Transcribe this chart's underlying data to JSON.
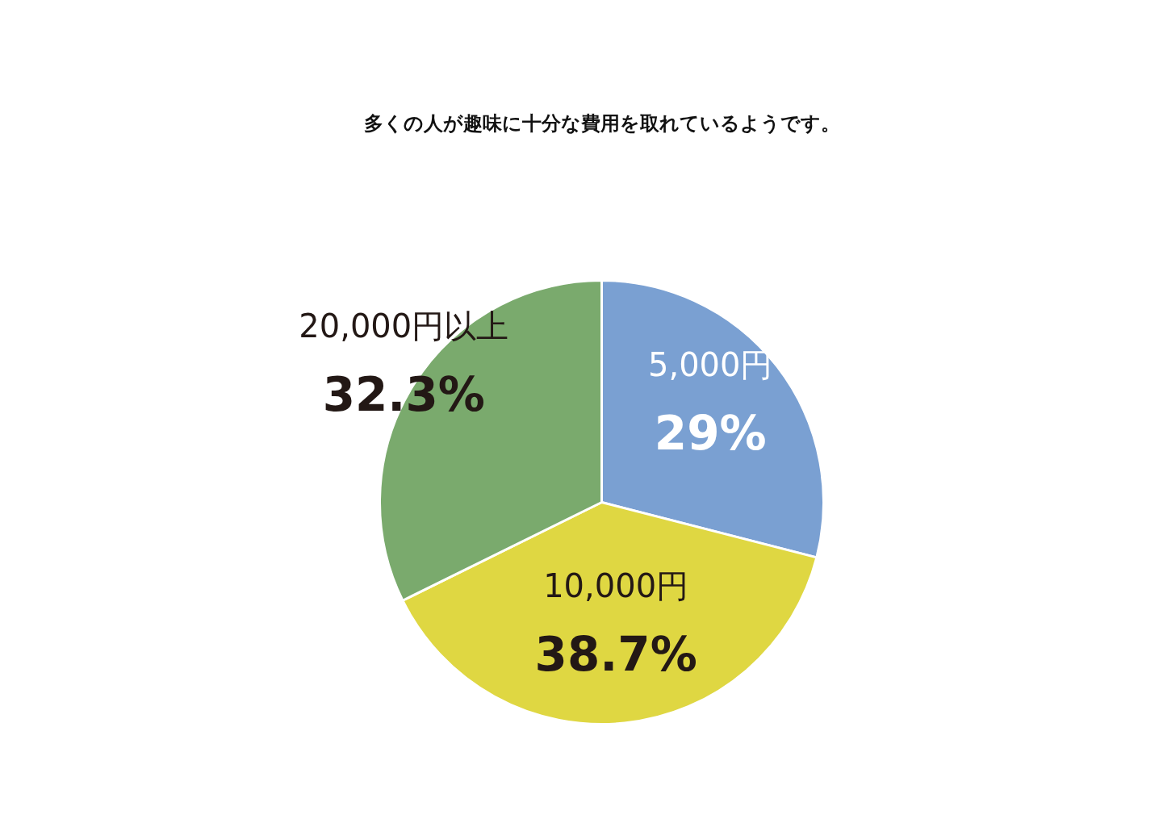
{
  "chart_data": {
    "type": "pie",
    "title": "多くの人が趣味に十分な費用を取れているようです。",
    "categories": [
      "5,000円",
      "10,000円",
      "20,000円以上"
    ],
    "values": [
      29,
      38.7,
      32.3
    ],
    "colors": [
      "#7aa0d2",
      "#dfd742",
      "#7aaa6d"
    ],
    "value_labels": [
      "29%",
      "38.7%",
      "32.3%"
    ]
  }
}
